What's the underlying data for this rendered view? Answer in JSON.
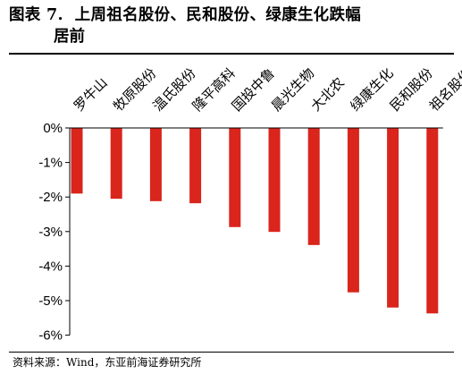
{
  "header": {
    "figure_label": "图表 7.",
    "title_line1": "上周祖名股份、民和股份、绿康生化跌幅",
    "title_line2": "居前"
  },
  "footer": {
    "source": "资料来源：Wind，东亚前海证券研究所"
  },
  "colors": {
    "bar": "#D9251C",
    "axis": "#000000"
  },
  "chart_data": {
    "type": "bar",
    "categories": [
      "罗牛山",
      "牧原股份",
      "温氏股份",
      "隆平高科",
      "国投中鲁",
      "晨光生物",
      "大北农",
      "绿康生化",
      "民和股份",
      "祖名股份"
    ],
    "values": [
      -1.9,
      -2.05,
      -2.12,
      -2.18,
      -2.87,
      -3.01,
      -3.39,
      -4.76,
      -5.2,
      -5.37
    ],
    "value_unit": "%",
    "ylim": [
      -6,
      0
    ],
    "yticks": [
      "0%",
      "-1%",
      "-2%",
      "-3%",
      "-4%",
      "-5%",
      "-6%"
    ],
    "ytick_values": [
      0,
      -1,
      -2,
      -3,
      -4,
      -5,
      -6
    ],
    "xlabel": "",
    "ylabel": "",
    "grid": false,
    "legend": "none",
    "category_label_position": "top, rotated 45 degrees"
  }
}
